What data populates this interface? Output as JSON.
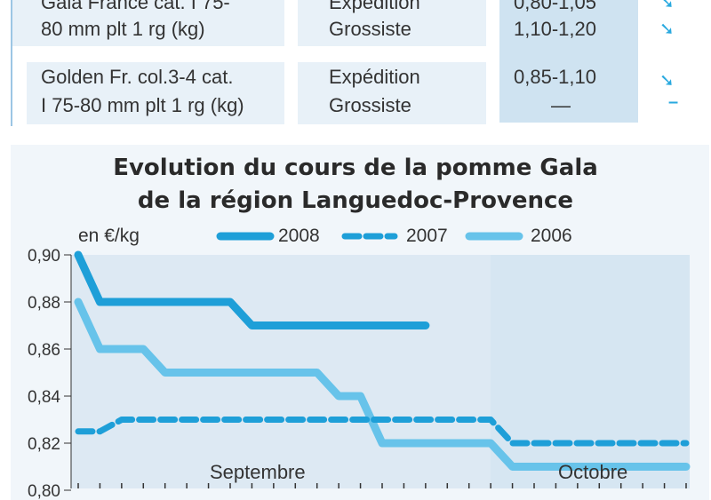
{
  "table": {
    "rows": [
      {
        "product": [
          "Gala France cat. I 75-",
          "80 mm plt 1 rg (kg)"
        ],
        "stages": [
          "Expédition",
          "Grossiste"
        ],
        "prices": [
          "0,80-1,05",
          "1,10-1,20"
        ],
        "trends": [
          "➘",
          "➘"
        ]
      },
      {
        "product": [
          "Golden Fr. col.3-4 cat.",
          "I 75-80 mm plt 1 rg (kg)"
        ],
        "stages": [
          "Expédition",
          "Grossiste"
        ],
        "prices": [
          "0,85-1,10",
          "—"
        ],
        "trends": [
          "➘",
          "–"
        ]
      }
    ]
  },
  "chart_data": {
    "type": "line",
    "title": [
      "Evolution du cours de la pomme Gala",
      "de la région Languedoc-Provence"
    ],
    "unit_label": "en €/kg",
    "y_ticks": [
      "0,90",
      "0,88",
      "0,86",
      "0,84",
      "0,82",
      "0,80"
    ],
    "ylim": [
      0.8,
      0.9
    ],
    "x_groups": [
      "Septembre",
      "Octobre"
    ],
    "legend_placement": "top",
    "series": [
      {
        "name": "2008",
        "style": "solid-thick",
        "color": "#1e9fd8",
        "x": [
          0,
          1,
          2,
          3,
          4,
          5,
          6,
          7,
          8,
          9,
          10,
          11,
          12,
          13,
          14,
          15,
          16
        ],
        "y": [
          0.9,
          0.88,
          0.88,
          0.88,
          0.88,
          0.88,
          0.88,
          0.88,
          0.87,
          0.87,
          0.87,
          0.87,
          0.87,
          0.87,
          0.87,
          0.87,
          0.87
        ]
      },
      {
        "name": "2007",
        "style": "dashed",
        "color": "#1e9fd8",
        "x": [
          0,
          1,
          2,
          3,
          4,
          5,
          6,
          7,
          8,
          9,
          10,
          11,
          12,
          13,
          14,
          15,
          16,
          17,
          18,
          19,
          20,
          21,
          22,
          23,
          24,
          25,
          26,
          27,
          28
        ],
        "y": [
          0.825,
          0.825,
          0.83,
          0.83,
          0.83,
          0.83,
          0.83,
          0.83,
          0.83,
          0.83,
          0.83,
          0.83,
          0.83,
          0.83,
          0.83,
          0.83,
          0.83,
          0.83,
          0.83,
          0.83,
          0.82,
          0.82,
          0.82,
          0.82,
          0.82,
          0.82,
          0.82,
          0.82,
          0.82
        ]
      },
      {
        "name": "2006",
        "style": "solid-light",
        "color": "#67c3ea",
        "x": [
          0,
          1,
          2,
          3,
          4,
          5,
          6,
          7,
          8,
          9,
          10,
          11,
          12,
          13,
          14,
          15,
          16,
          17,
          18,
          19,
          20,
          21,
          22,
          23,
          24,
          25,
          26,
          27,
          28
        ],
        "y": [
          0.88,
          0.86,
          0.86,
          0.86,
          0.85,
          0.85,
          0.85,
          0.85,
          0.85,
          0.85,
          0.85,
          0.85,
          0.84,
          0.84,
          0.82,
          0.82,
          0.82,
          0.82,
          0.82,
          0.82,
          0.81,
          0.81,
          0.81,
          0.81,
          0.81,
          0.81,
          0.81,
          0.81,
          0.81
        ]
      }
    ]
  }
}
